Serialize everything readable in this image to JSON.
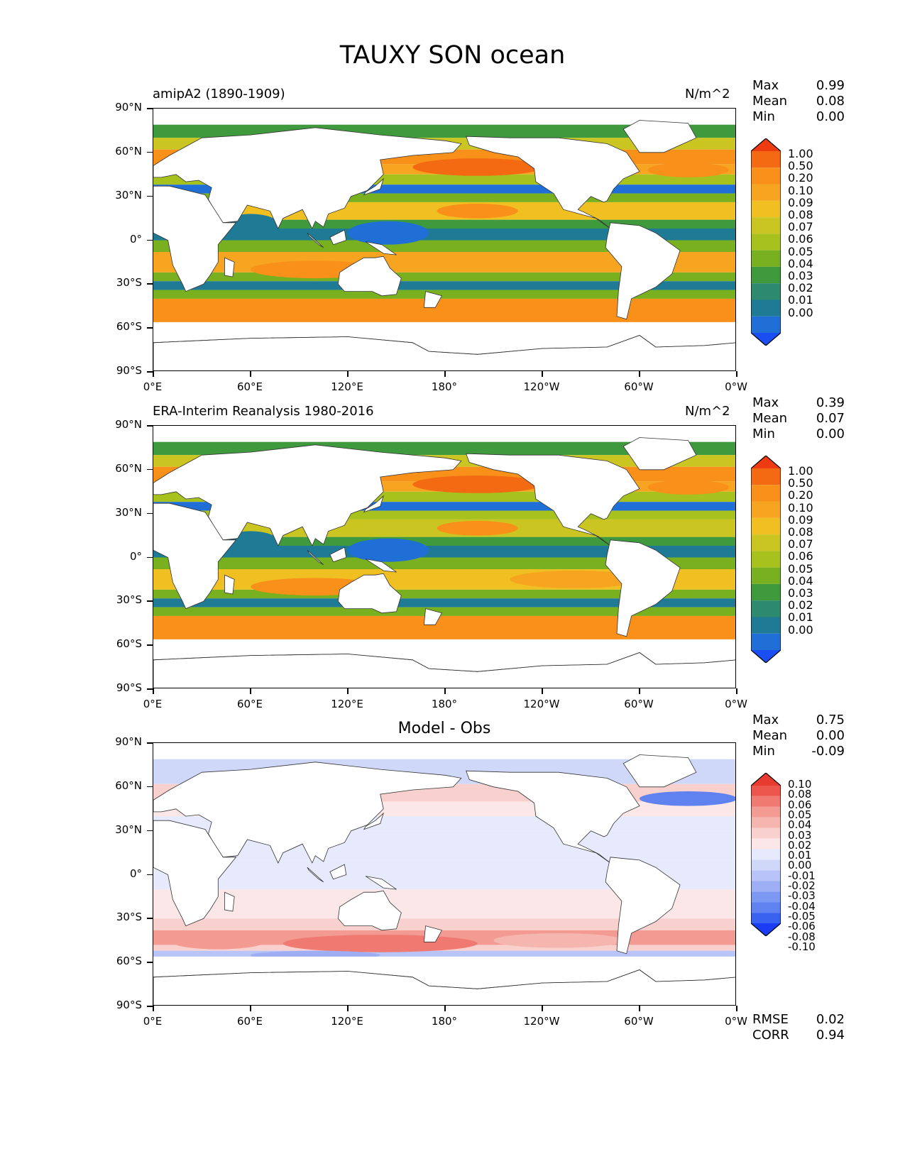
{
  "title": "TAUXY SON ocean",
  "axes": {
    "lat_ticks": [
      "90°N",
      "60°N",
      "30°N",
      "0°",
      "30°S",
      "60°S",
      "90°S"
    ],
    "lon_ticks": [
      "0°E",
      "60°E",
      "120°E",
      "180°",
      "120°W",
      "60°W",
      "0°W"
    ]
  },
  "colors": {
    "abs_scale": [
      "#1a4df2",
      "#1f6fd6",
      "#1f7a95",
      "#2d8a6f",
      "#3f9a3d",
      "#78b020",
      "#a7c21c",
      "#cbc522",
      "#f0c022",
      "#f7a520",
      "#f8901a",
      "#f46a13",
      "#ee3b11"
    ],
    "diff_scale": [
      "#1a3cf5",
      "#3a62f0",
      "#5f82f0",
      "#7d98f2",
      "#9daef5",
      "#b8c4f7",
      "#d0d8fa",
      "#e6eafc",
      "#fbe7e7",
      "#f8d0cd",
      "#f6b6b0",
      "#f39a92",
      "#f07a72",
      "#ec564d",
      "#e83b2f"
    ]
  },
  "panels": [
    {
      "label": "amipA2 (1890-1909)",
      "units": "N/m^2",
      "stats": {
        "max_label": "Max",
        "max": "0.99",
        "mean_label": "Mean",
        "mean": "0.08",
        "min_label": "Min",
        "min": "0.00"
      },
      "colorbar_labels": [
        "1.00",
        "0.50",
        "0.20",
        "0.10",
        "0.09",
        "0.08",
        "0.07",
        "0.06",
        "0.05",
        "0.04",
        "0.03",
        "0.02",
        "0.01",
        "0.00"
      ]
    },
    {
      "label": "ERA-Interim Reanalysis 1980-2016",
      "units": "N/m^2",
      "stats": {
        "max_label": "Max",
        "max": "0.39",
        "mean_label": "Mean",
        "mean": "0.07",
        "min_label": "Min",
        "min": "0.00"
      },
      "colorbar_labels": [
        "1.00",
        "0.50",
        "0.20",
        "0.10",
        "0.09",
        "0.08",
        "0.07",
        "0.06",
        "0.05",
        "0.04",
        "0.03",
        "0.02",
        "0.01",
        "0.00"
      ]
    },
    {
      "label": "Model - Obs",
      "units": "",
      "stats": {
        "max_label": "Max",
        "max": "0.75",
        "mean_label": "Mean",
        "mean": "0.00",
        "min_label": "Min",
        "min": "-0.09"
      },
      "colorbar_labels": [
        "0.10",
        "0.08",
        "0.06",
        "0.05",
        "0.04",
        "0.03",
        "0.02",
        "0.01",
        "0.00",
        "-0.01",
        "-0.02",
        "-0.03",
        "-0.04",
        "-0.05",
        "-0.06",
        "-0.08",
        "-0.10"
      ],
      "footer": {
        "rmse_label": "RMSE",
        "rmse": "0.02",
        "corr_label": "CORR",
        "corr": "0.94"
      }
    }
  ],
  "chart_data": [
    {
      "type": "heatmap",
      "title": "amipA2 (1890-1909)",
      "units": "N/m^2",
      "x_range": [
        0,
        360
      ],
      "y_range": [
        -90,
        90
      ],
      "colorbar_levels": [
        0.0,
        0.01,
        0.02,
        0.03,
        0.04,
        0.05,
        0.06,
        0.07,
        0.08,
        0.09,
        0.1,
        0.2,
        0.5,
        1.0
      ],
      "summary": {
        "max": 0.99,
        "mean": 0.08,
        "min": 0.0
      }
    },
    {
      "type": "heatmap",
      "title": "ERA-Interim Reanalysis 1980-2016",
      "units": "N/m^2",
      "x_range": [
        0,
        360
      ],
      "y_range": [
        -90,
        90
      ],
      "colorbar_levels": [
        0.0,
        0.01,
        0.02,
        0.03,
        0.04,
        0.05,
        0.06,
        0.07,
        0.08,
        0.09,
        0.1,
        0.2,
        0.5,
        1.0
      ],
      "summary": {
        "max": 0.39,
        "mean": 0.07,
        "min": 0.0
      }
    },
    {
      "type": "heatmap",
      "title": "Model - Obs",
      "x_range": [
        0,
        360
      ],
      "y_range": [
        -90,
        90
      ],
      "colorbar_levels": [
        -0.1,
        -0.08,
        -0.06,
        -0.05,
        -0.04,
        -0.03,
        -0.02,
        -0.01,
        0.0,
        0.01,
        0.02,
        0.03,
        0.04,
        0.05,
        0.06,
        0.08,
        0.1
      ],
      "summary": {
        "max": 0.75,
        "mean": 0.0,
        "min": -0.09,
        "rmse": 0.02,
        "corr": 0.94
      }
    }
  ]
}
